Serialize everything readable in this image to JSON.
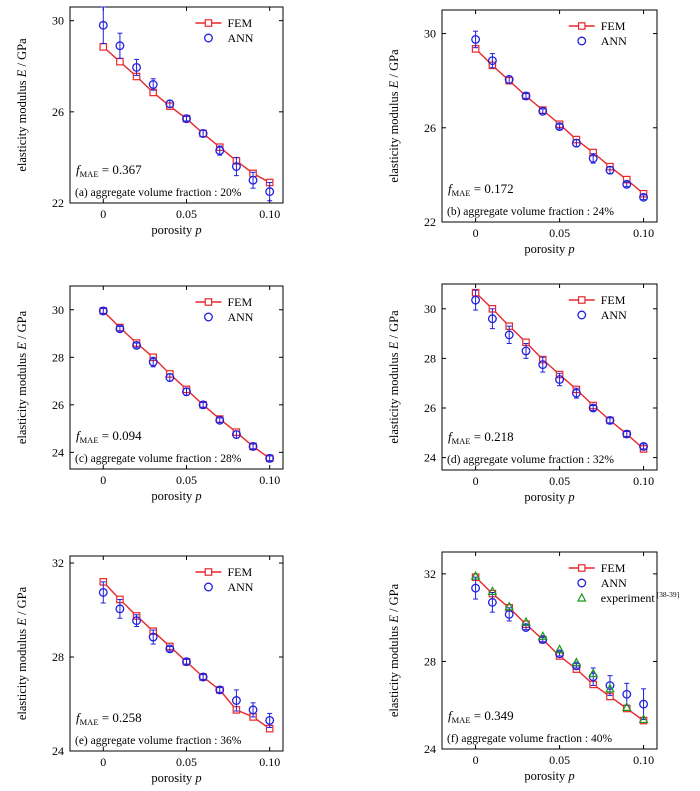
{
  "colors": {
    "fem": "#e8262b",
    "ann": "#1f1fe0",
    "experiment": "#1a9a1a",
    "axis": "#000000",
    "background": "#ffffff"
  },
  "chart_data": [
    {
      "type": "line",
      "panel_label": "(a)  aggregate volume fraction : 20%",
      "metric_prefix": "f",
      "metric_sub": "MAE",
      "metric_value": " = 0.367",
      "xlabel": "porosity ",
      "xlabel_var": "p",
      "ylabel": "elasticity modulus ",
      "ylabel_var": "E",
      "ylabel_unit": " / GPa",
      "xlim": [
        -0.02,
        0.108
      ],
      "ylim": [
        22,
        30.6
      ],
      "xticks": [
        0,
        0.05,
        0.1
      ],
      "xtick_labels": [
        "0",
        "0.05",
        "0.10"
      ],
      "yticks": [
        22,
        26,
        30
      ],
      "ytick_labels": [
        "22",
        "26",
        "30"
      ],
      "x": [
        0,
        0.01,
        0.02,
        0.03,
        0.04,
        0.05,
        0.06,
        0.07,
        0.08,
        0.09,
        0.1
      ],
      "series": [
        {
          "name": "FEM",
          "marker": "square",
          "values": [
            28.85,
            28.2,
            27.55,
            26.85,
            26.25,
            25.7,
            25.05,
            24.45,
            23.85,
            23.3,
            22.9
          ]
        },
        {
          "name": "ANN",
          "marker": "circle",
          "values": [
            29.8,
            28.9,
            27.95,
            27.2,
            26.35,
            25.7,
            25.05,
            24.3,
            23.6,
            23.0,
            22.5
          ],
          "errors": [
            0.8,
            0.55,
            0.35,
            0.25,
            0.15,
            0.1,
            0.15,
            0.2,
            0.4,
            0.35,
            0.4
          ]
        }
      ],
      "legend": "top-right"
    },
    {
      "type": "line",
      "panel_label": "(b)  aggregate volume fraction : 24%",
      "metric_prefix": "f",
      "metric_sub": "MAE",
      "metric_value": " = 0.172",
      "xlabel": "porosity ",
      "xlabel_var": "p",
      "ylabel": "elasticity modulus ",
      "ylabel_var": "E",
      "ylabel_unit": " / GPa",
      "xlim": [
        -0.02,
        0.108
      ],
      "ylim": [
        22,
        31
      ],
      "xticks": [
        0,
        0.05,
        0.1
      ],
      "xtick_labels": [
        "0",
        "0.05",
        "0.10"
      ],
      "yticks": [
        22,
        26,
        30
      ],
      "ytick_labels": [
        "22",
        "26",
        "30"
      ],
      "x": [
        0,
        0.01,
        0.02,
        0.03,
        0.04,
        0.05,
        0.06,
        0.07,
        0.08,
        0.09,
        0.1
      ],
      "series": [
        {
          "name": "FEM",
          "marker": "square",
          "values": [
            29.35,
            28.65,
            28.0,
            27.35,
            26.75,
            26.15,
            25.5,
            24.95,
            24.35,
            23.8,
            23.2
          ]
        },
        {
          "name": "ANN",
          "marker": "circle",
          "values": [
            29.75,
            28.85,
            28.05,
            27.35,
            26.7,
            26.05,
            25.35,
            24.7,
            24.2,
            23.6,
            23.05
          ],
          "errors": [
            0.35,
            0.3,
            0.15,
            0.1,
            0.1,
            0.1,
            0.15,
            0.2,
            0.15,
            0.1,
            0.1
          ]
        }
      ],
      "legend": "top-right"
    },
    {
      "type": "line",
      "panel_label": "(c)  aggregate volume fraction : 28%",
      "metric_prefix": "f",
      "metric_sub": "MAE",
      "metric_value": " = 0.094",
      "xlabel": "porosity ",
      "xlabel_var": "p",
      "ylabel": "elasticity modulus ",
      "ylabel_var": "E",
      "ylabel_unit": " / GPa",
      "xlim": [
        -0.02,
        0.108
      ],
      "ylim": [
        23.3,
        31
      ],
      "xticks": [
        0,
        0.05,
        0.1
      ],
      "xtick_labels": [
        "0",
        "0.05",
        "0.10"
      ],
      "yticks": [
        24,
        26,
        28,
        30
      ],
      "ytick_labels": [
        "24",
        "26",
        "28",
        "30"
      ],
      "x": [
        0,
        0.01,
        0.02,
        0.03,
        0.04,
        0.05,
        0.06,
        0.07,
        0.08,
        0.09,
        0.1
      ],
      "series": [
        {
          "name": "FEM",
          "marker": "square",
          "values": [
            29.95,
            29.25,
            28.6,
            28.0,
            27.3,
            26.65,
            26.0,
            25.4,
            24.85,
            24.25,
            23.75
          ]
        },
        {
          "name": "ANN",
          "marker": "circle",
          "values": [
            29.95,
            29.2,
            28.5,
            27.8,
            27.15,
            26.55,
            26.0,
            25.35,
            24.75,
            24.25,
            23.75
          ],
          "errors": [
            0.1,
            0.1,
            0.1,
            0.2,
            0.15,
            0.15,
            0.1,
            0.1,
            0.15,
            0.1,
            0.1
          ]
        }
      ],
      "legend": "top-right"
    },
    {
      "type": "line",
      "panel_label": "(d)  aggregate volume fraction : 32%",
      "metric_prefix": "f",
      "metric_sub": "MAE",
      "metric_value": " = 0.218",
      "xlabel": "porosity ",
      "xlabel_var": "p",
      "ylabel": "elasticity modulus ",
      "ylabel_var": "E",
      "ylabel_unit": " / GPa",
      "xlim": [
        -0.02,
        0.108
      ],
      "ylim": [
        23.5,
        31
      ],
      "xticks": [
        0,
        0.05,
        0.1
      ],
      "xtick_labels": [
        "0",
        "0.05",
        "0.10"
      ],
      "yticks": [
        24,
        26,
        28,
        30
      ],
      "ytick_labels": [
        "24",
        "26",
        "28",
        "30"
      ],
      "x": [
        0,
        0.01,
        0.02,
        0.03,
        0.04,
        0.05,
        0.06,
        0.07,
        0.08,
        0.09,
        0.1
      ],
      "series": [
        {
          "name": "FEM",
          "marker": "square",
          "values": [
            30.65,
            30.0,
            29.3,
            28.65,
            27.95,
            27.35,
            26.75,
            26.1,
            25.5,
            24.95,
            24.35
          ]
        },
        {
          "name": "ANN",
          "marker": "circle",
          "values": [
            30.35,
            29.6,
            28.95,
            28.3,
            27.75,
            27.15,
            26.6,
            26.0,
            25.5,
            24.95,
            24.45
          ],
          "errors": [
            0.4,
            0.4,
            0.35,
            0.3,
            0.3,
            0.25,
            0.2,
            0.1,
            0.1,
            0.1,
            0.1
          ]
        }
      ],
      "legend": "top-right"
    },
    {
      "type": "line",
      "panel_label": "(e)  aggregate volume fraction : 36%",
      "metric_prefix": "f",
      "metric_sub": "MAE",
      "metric_value": " = 0.258",
      "xlabel": "porosity ",
      "xlabel_var": "p",
      "ylabel": "elasticity modulus ",
      "ylabel_var": "E",
      "ylabel_unit": " / GPa",
      "xlim": [
        -0.02,
        0.108
      ],
      "ylim": [
        24,
        32.3
      ],
      "xticks": [
        0,
        0.05,
        0.1
      ],
      "xtick_labels": [
        "0",
        "0.05",
        "0.10"
      ],
      "yticks": [
        24,
        28,
        32
      ],
      "ytick_labels": [
        "24",
        "28",
        "32"
      ],
      "x": [
        0,
        0.01,
        0.02,
        0.03,
        0.04,
        0.05,
        0.06,
        0.07,
        0.08,
        0.09,
        0.1
      ],
      "series": [
        {
          "name": "FEM",
          "marker": "square",
          "values": [
            31.2,
            30.45,
            29.75,
            29.1,
            28.45,
            27.8,
            27.15,
            26.6,
            25.75,
            25.45,
            24.95
          ]
        },
        {
          "name": "ANN",
          "marker": "circle",
          "values": [
            30.75,
            30.05,
            29.55,
            28.85,
            28.35,
            27.8,
            27.15,
            26.6,
            26.15,
            25.75,
            25.3
          ],
          "errors": [
            0.45,
            0.4,
            0.25,
            0.3,
            0.1,
            0.1,
            0.1,
            0.1,
            0.45,
            0.3,
            0.3
          ]
        }
      ],
      "legend": "top-right"
    },
    {
      "type": "line",
      "panel_label": "(f)  aggregate volume fraction : 40%",
      "metric_prefix": "f",
      "metric_sub": "MAE",
      "metric_value": " = 0.349",
      "xlabel": "porosity ",
      "xlabel_var": "p",
      "ylabel": "elasticity modulus ",
      "ylabel_var": "E",
      "ylabel_unit": " / GPa",
      "xlim": [
        -0.02,
        0.108
      ],
      "ylim": [
        24,
        33
      ],
      "xticks": [
        0,
        0.05,
        0.1
      ],
      "xtick_labels": [
        "0",
        "0.05",
        "0.10"
      ],
      "yticks": [
        24,
        28,
        32
      ],
      "ytick_labels": [
        "24",
        "28",
        "32"
      ],
      "x": [
        0,
        0.01,
        0.02,
        0.03,
        0.04,
        0.05,
        0.06,
        0.07,
        0.08,
        0.09,
        0.1
      ],
      "series": [
        {
          "name": "FEM",
          "marker": "square",
          "values": [
            31.85,
            31.1,
            30.45,
            29.7,
            29.0,
            28.25,
            27.65,
            26.95,
            26.4,
            25.85,
            25.3
          ]
        },
        {
          "name": "ANN",
          "marker": "circle",
          "values": [
            31.35,
            30.7,
            30.15,
            29.55,
            29.0,
            28.35,
            27.8,
            27.3,
            26.9,
            26.5,
            26.05
          ],
          "errors": [
            0.5,
            0.45,
            0.3,
            0.1,
            0.1,
            0.1,
            0.1,
            0.4,
            0.45,
            0.5,
            0.7
          ]
        },
        {
          "name": "experiment",
          "name_sup": " [38-39]",
          "marker": "triangle",
          "values": [
            31.9,
            31.2,
            30.5,
            29.8,
            29.15,
            28.55,
            27.95,
            27.45,
            26.75,
            25.9,
            25.35
          ]
        }
      ],
      "legend": "top-right"
    }
  ]
}
